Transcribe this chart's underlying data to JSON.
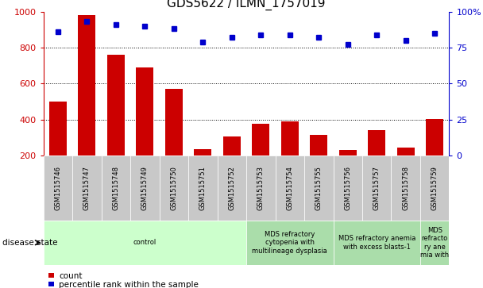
{
  "title": "GDS5622 / ILMN_1757019",
  "samples": [
    "GSM1515746",
    "GSM1515747",
    "GSM1515748",
    "GSM1515749",
    "GSM1515750",
    "GSM1515751",
    "GSM1515752",
    "GSM1515753",
    "GSM1515754",
    "GSM1515755",
    "GSM1515756",
    "GSM1515757",
    "GSM1515758",
    "GSM1515759"
  ],
  "counts": [
    500,
    980,
    760,
    690,
    570,
    235,
    305,
    375,
    390,
    315,
    230,
    340,
    245,
    405
  ],
  "percentile_ranks": [
    86,
    93,
    91,
    90,
    88,
    79,
    82,
    84,
    84,
    82,
    77,
    84,
    80,
    85
  ],
  "bar_color": "#cc0000",
  "dot_color": "#0000cc",
  "ylim_left": [
    200,
    1000
  ],
  "ylim_right": [
    0,
    100
  ],
  "yticks_left": [
    200,
    400,
    600,
    800,
    1000
  ],
  "yticks_right": [
    0,
    25,
    50,
    75,
    100
  ],
  "ytick_labels_right": [
    "0",
    "25",
    "50",
    "75",
    "100%"
  ],
  "grid_values": [
    400,
    600,
    800
  ],
  "disease_groups": [
    {
      "label": "control",
      "start": 0,
      "end": 7,
      "color": "#ccffcc"
    },
    {
      "label": "MDS refractory\ncytopenia with\nmultilineage dysplasia",
      "start": 7,
      "end": 10,
      "color": "#aaddaa"
    },
    {
      "label": "MDS refractory anemia\nwith excess blasts-1",
      "start": 10,
      "end": 13,
      "color": "#aaddaa"
    },
    {
      "label": "MDS\nrefracto\nry ane\nmia with",
      "start": 13,
      "end": 14,
      "color": "#aaddaa"
    }
  ],
  "disease_state_label": "disease state",
  "legend_count_label": "count",
  "legend_pct_label": "percentile rank within the sample",
  "bar_width": 0.6,
  "background_color": "#ffffff",
  "tick_bg_color": "#c8c8c8",
  "title_fontsize": 11,
  "tick_fontsize": 8,
  "sample_fontsize": 6
}
